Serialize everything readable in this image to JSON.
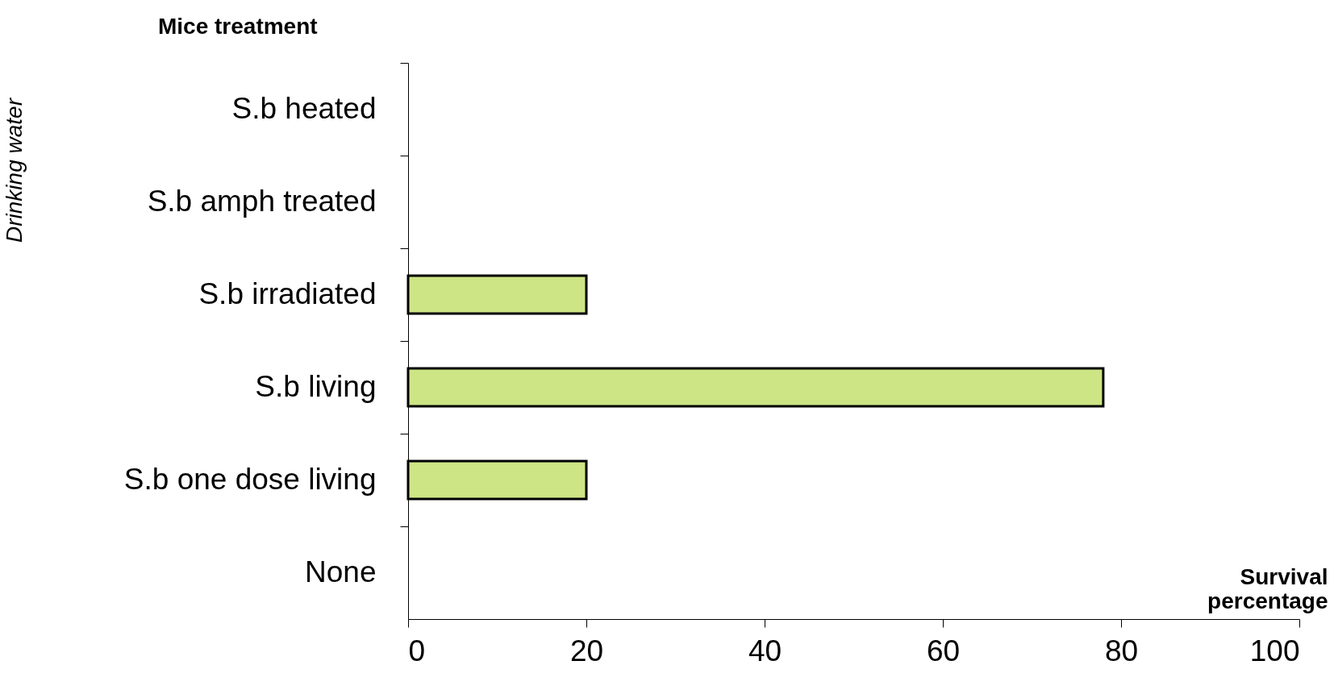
{
  "chart_data": {
    "type": "bar",
    "orientation": "horizontal",
    "title": "Mice treatment",
    "ylabel": "Drinking water",
    "xlabel": "Survival percentage",
    "categories": [
      "S.b heated",
      "S.b amph treated",
      "S.b irradiated",
      "S.b living",
      "S.b one dose living",
      "None"
    ],
    "values": [
      0,
      0,
      20,
      78,
      20,
      0
    ],
    "color": "#cde584",
    "xlim": [
      0,
      100
    ],
    "xticks": [
      0,
      20,
      40,
      60,
      80,
      100
    ],
    "grid": false
  }
}
